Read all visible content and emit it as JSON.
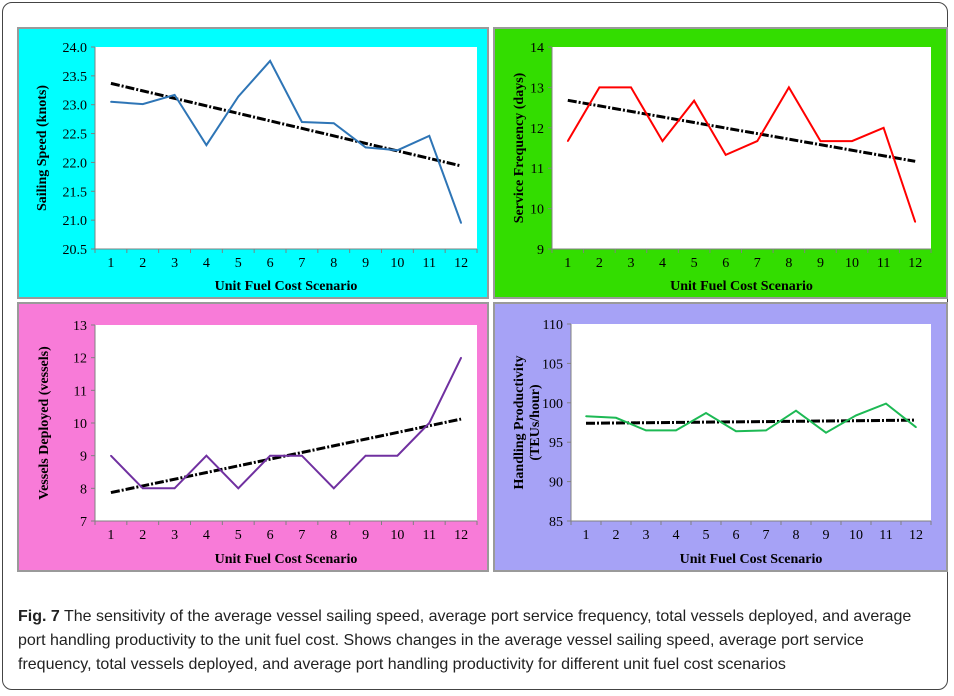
{
  "chart_data": [
    {
      "type": "line",
      "panel": "top-left",
      "background": "#00FFFF",
      "line_color": "#2E75B6",
      "x": [
        1,
        2,
        3,
        4,
        5,
        6,
        7,
        8,
        9,
        10,
        11,
        12
      ],
      "xticks": [
        "1",
        "2",
        "3",
        "4",
        "5",
        "6",
        "7",
        "8",
        "9",
        "10",
        "11",
        "12"
      ],
      "series": [
        {
          "values": [
            23.05,
            23.01,
            23.17,
            22.3,
            23.14,
            23.76,
            22.7,
            22.68,
            22.26,
            22.21,
            22.46,
            20.95
          ]
        }
      ],
      "trendline": [
        23.37,
        21.94
      ],
      "ylim": [
        20.5,
        24.0
      ],
      "yticks": [
        "20.5",
        "21.0",
        "21.5",
        "22.0",
        "22.5",
        "23.0",
        "23.5",
        "24.0"
      ],
      "xlabel": "Unit Fuel Cost Scenario",
      "ylabel": [
        "Sailing Speed (knots)"
      ]
    },
    {
      "type": "line",
      "panel": "top-right",
      "background": "#33DD00",
      "line_color": "#FF0000",
      "x": [
        1,
        2,
        3,
        4,
        5,
        6,
        7,
        8,
        9,
        10,
        11,
        12
      ],
      "xticks": [
        "1",
        "2",
        "3",
        "4",
        "5",
        "6",
        "7",
        "8",
        "9",
        "10",
        "11",
        "12"
      ],
      "series": [
        {
          "values": [
            11.67,
            13.0,
            13.0,
            11.67,
            12.67,
            11.33,
            11.67,
            13.0,
            11.67,
            11.67,
            12.0,
            9.67
          ]
        }
      ],
      "trendline": [
        12.68,
        11.17
      ],
      "ylim": [
        9,
        14
      ],
      "yticks": [
        "9",
        "10",
        "11",
        "12",
        "13",
        "14"
      ],
      "xlabel": "Unit Fuel Cost Scenario",
      "ylabel": [
        "Service Frequency (days)"
      ]
    },
    {
      "type": "line",
      "panel": "bottom-left",
      "background": "#F87BD8",
      "line_color": "#7030A0",
      "x": [
        1,
        2,
        3,
        4,
        5,
        6,
        7,
        8,
        9,
        10,
        11,
        12
      ],
      "xticks": [
        "1",
        "2",
        "3",
        "4",
        "5",
        "6",
        "7",
        "8",
        "9",
        "10",
        "11",
        "12"
      ],
      "series": [
        {
          "values": [
            9,
            8,
            8,
            9,
            8,
            9,
            9,
            8,
            9,
            9,
            10,
            12
          ]
        }
      ],
      "trendline": [
        7.87,
        10.12
      ],
      "ylim": [
        7,
        13
      ],
      "yticks": [
        "7",
        "8",
        "9",
        "10",
        "11",
        "12",
        "13"
      ],
      "xlabel": "Unit Fuel Cost Scenario",
      "ylabel": [
        "Vessels Deployed (vessels)"
      ]
    },
    {
      "type": "line",
      "panel": "bottom-right",
      "background": "#A6A2F6",
      "line_color": "#1DB954",
      "x": [
        1,
        2,
        3,
        4,
        5,
        6,
        7,
        8,
        9,
        10,
        11,
        12
      ],
      "xticks": [
        "1",
        "2",
        "3",
        "4",
        "5",
        "6",
        "7",
        "8",
        "9",
        "10",
        "11",
        "12"
      ],
      "series": [
        {
          "values": [
            98.3,
            98.1,
            96.5,
            96.5,
            98.7,
            96.4,
            96.5,
            99.0,
            96.2,
            98.4,
            99.9,
            96.9
          ]
        }
      ],
      "trendline": [
        97.4,
        97.8
      ],
      "ylim": [
        85,
        110
      ],
      "yticks": [
        "85",
        "90",
        "95",
        "100",
        "105",
        "110"
      ],
      "xlabel": "Unit Fuel Cost Scenario",
      "ylabel": [
        "Handling Productivity",
        "(TEUs/hour)"
      ]
    }
  ],
  "caption": {
    "label": "Fig. 7",
    "text": "The sensitivity of the average vessel sailing speed, average port service frequency, total vessels deployed, and average port handling productivity to the unit fuel cost. Shows changes in the average vessel sailing speed, average port service frequency, total vessels deployed, and average port handling productivity for different unit fuel cost scenarios"
  }
}
